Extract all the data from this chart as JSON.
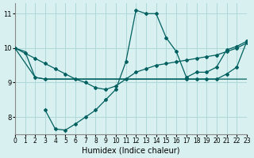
{
  "xlabel": "Humidex (Indice chaleur)",
  "ylabel": "",
  "xlim": [
    0,
    23
  ],
  "ylim": [
    7.5,
    11.3
  ],
  "xticks": [
    0,
    1,
    2,
    3,
    4,
    5,
    6,
    7,
    8,
    9,
    10,
    11,
    12,
    13,
    14,
    15,
    16,
    17,
    18,
    19,
    20,
    21,
    22,
    23
  ],
  "yticks": [
    8,
    9,
    10,
    11
  ],
  "bg_color": "#d8f0ef",
  "line_color": "#006060",
  "grid_color": "#b0d8d8",
  "line1_x": [
    0,
    1,
    2,
    3,
    4,
    5,
    6,
    7,
    8,
    9,
    10,
    11,
    12,
    13,
    14,
    15,
    16,
    17,
    18,
    19,
    20,
    21,
    22,
    23
  ],
  "line1_y": [
    10.0,
    9.9,
    9.15,
    9.1,
    9.1,
    9.1,
    9.1,
    9.1,
    9.1,
    9.1,
    9.1,
    9.1,
    9.1,
    9.1,
    9.1,
    9.1,
    9.1,
    9.1,
    9.1,
    9.1,
    9.1,
    9.1,
    9.1,
    9.1
  ],
  "line2_x": [
    0,
    1,
    2,
    3,
    4,
    5,
    6,
    7,
    8,
    9,
    10,
    11,
    12,
    13,
    14,
    15,
    16,
    17,
    18,
    19,
    20,
    21,
    22,
    23
  ],
  "line2_y": [
    10.0,
    9.85,
    9.7,
    9.55,
    9.4,
    9.25,
    9.1,
    9.0,
    8.85,
    8.8,
    8.9,
    9.1,
    9.3,
    9.4,
    9.5,
    9.55,
    9.6,
    9.65,
    9.7,
    9.75,
    9.8,
    9.9,
    10.0,
    10.15
  ],
  "line3_x": [
    3,
    4,
    5,
    6,
    7,
    8,
    9,
    10,
    11,
    12,
    13,
    14,
    15,
    16,
    17,
    18,
    19,
    20,
    21,
    22,
    23
  ],
  "line3_y": [
    8.2,
    7.65,
    7.62,
    7.8,
    8.0,
    8.2,
    8.5,
    8.8,
    9.6,
    11.1,
    11.0,
    11.0,
    10.3,
    9.9,
    9.15,
    9.3,
    9.3,
    9.45,
    9.95,
    10.05,
    10.2
  ],
  "line4_x": [
    0,
    2,
    3,
    17,
    18,
    19,
    20,
    21,
    22,
    23
  ],
  "line4_y": [
    10.0,
    9.15,
    9.1,
    9.1,
    9.1,
    9.1,
    9.1,
    9.25,
    9.45,
    10.2
  ]
}
